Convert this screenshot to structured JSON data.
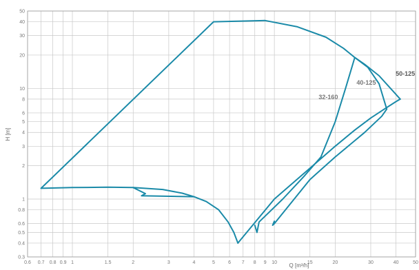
{
  "chart_data": {
    "type": "line",
    "title": "",
    "xlabel": "Q [m³/h]",
    "ylabel": "H [m]",
    "xscale": "log",
    "yscale": "log",
    "xlim": [
      0.6,
      50
    ],
    "ylim": [
      0.3,
      50
    ],
    "x_ticks": [
      0.6,
      0.7,
      0.8,
      0.9,
      1,
      1.5,
      2,
      3,
      4,
      5,
      6,
      7,
      8,
      9,
      10,
      15,
      20,
      30,
      40,
      50
    ],
    "x_tick_labels": [
      "0.6",
      "0.7",
      "0.8",
      "0.9",
      "1",
      "1.5",
      "2",
      "3",
      "4",
      "5",
      "6",
      "7",
      "8",
      "9",
      "10",
      "15",
      "20",
      "30",
      "40",
      "50"
    ],
    "y_ticks": [
      0.3,
      0.4,
      0.5,
      0.6,
      0.8,
      1,
      2,
      3,
      4,
      5,
      6,
      8,
      10,
      20,
      30,
      40,
      50
    ],
    "y_tick_labels": [
      "0.3",
      "0.4",
      "0.5",
      "0.6",
      "0.8",
      "1",
      "2",
      "3",
      "4",
      "5",
      "6",
      "8",
      "10",
      "20",
      "30",
      "40",
      "50"
    ],
    "grid": true,
    "line_color": "#1a8aa8",
    "series": [
      {
        "name": "",
        "x": [
          0.7,
          1.0,
          1.5,
          2.0,
          2.8,
          3.5,
          4.0,
          4.6,
          5.3,
          5.9,
          6.3,
          6.6
        ],
        "y": [
          1.25,
          1.27,
          1.28,
          1.27,
          1.22,
          1.13,
          1.05,
          0.95,
          0.8,
          0.62,
          0.5,
          0.4
        ]
      },
      {
        "name": "",
        "x": [
          0.7,
          5.0,
          9.0,
          13.0,
          18.0,
          22.0,
          25.0,
          28.0,
          33.0,
          42.0
        ],
        "y": [
          1.25,
          40.0,
          41.0,
          36.0,
          29.0,
          23.0,
          19.0,
          16.5,
          13.0,
          8.0
        ]
      },
      {
        "name": "",
        "x": [
          2.0,
          2.3,
          2.2,
          4.0
        ],
        "y": [
          1.27,
          1.12,
          1.07,
          1.05
        ]
      },
      {
        "name": "",
        "x": [
          6.6,
          10.0,
          15.0,
          20.0,
          25.0,
          30.0,
          35.0,
          40.0,
          42.0
        ],
        "y": [
          0.4,
          1.0,
          1.9,
          3.0,
          4.2,
          5.4,
          6.5,
          7.6,
          8.0
        ]
      },
      {
        "name": "",
        "x": [
          25.0,
          29.0,
          33.0,
          36.0,
          34.0,
          28.0,
          20.0,
          15.0,
          10.0,
          9.8,
          10.0
        ],
        "y": [
          19.0,
          15.5,
          11.0,
          6.5,
          5.6,
          4.0,
          2.4,
          1.5,
          0.6,
          0.58,
          0.63
        ]
      },
      {
        "name": "",
        "x": [
          25.0,
          22.5,
          20.0,
          17.0,
          14.0,
          11.0,
          8.4,
          8.2,
          8.0
        ],
        "y": [
          19.0,
          10.0,
          5.0,
          2.4,
          1.6,
          1.0,
          0.62,
          0.5,
          0.58
        ]
      }
    ],
    "annotations": [
      {
        "text": "50-125",
        "x": 44.5,
        "y": 13.0
      },
      {
        "text": "40-125",
        "x": 28.5,
        "y": 10.8
      },
      {
        "text": "32-160",
        "x": 18.5,
        "y": 8.0
      }
    ]
  }
}
